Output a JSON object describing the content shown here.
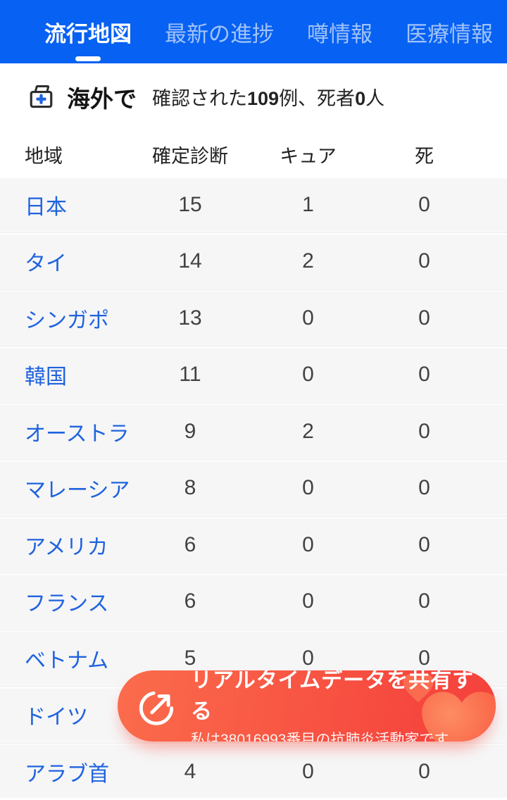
{
  "header": {
    "bg_color": "#0761F2",
    "tabs": [
      {
        "label": "流行地図",
        "active": true
      },
      {
        "label": "最新の進捗",
        "active": false
      },
      {
        "label": "噂情報",
        "active": false
      },
      {
        "label": "医療情報",
        "active": false
      }
    ]
  },
  "summary": {
    "icon": "archive-plus-icon",
    "title": "海外で",
    "desc_prefix": "確認された",
    "confirmed_total": "109",
    "desc_middle": "例、死者",
    "death_total": "0",
    "desc_suffix": "人"
  },
  "table": {
    "columns": [
      "地域",
      "確定診断",
      "キュア",
      "死"
    ],
    "link_color": "#1F63DE",
    "rows": [
      {
        "region": "日本",
        "confirmed": "15",
        "cured": "1",
        "dead": "0"
      },
      {
        "region": "タイ",
        "confirmed": "14",
        "cured": "2",
        "dead": "0"
      },
      {
        "region": "シンガポ",
        "confirmed": "13",
        "cured": "0",
        "dead": "0"
      },
      {
        "region": "韓国",
        "confirmed": "11",
        "cured": "0",
        "dead": "0"
      },
      {
        "region": "オーストラ",
        "confirmed": "9",
        "cured": "2",
        "dead": "0"
      },
      {
        "region": "マレーシア",
        "confirmed": "8",
        "cured": "0",
        "dead": "0"
      },
      {
        "region": "アメリカ",
        "confirmed": "6",
        "cured": "0",
        "dead": "0"
      },
      {
        "region": "フランス",
        "confirmed": "6",
        "cured": "0",
        "dead": "0"
      },
      {
        "region": "ベトナム",
        "confirmed": "5",
        "cured": "0",
        "dead": "0"
      },
      {
        "region": "ドイツ",
        "confirmed": "",
        "cured": "",
        "dead": ""
      },
      {
        "region": "アラブ首",
        "confirmed": "4",
        "cured": "0",
        "dead": "0"
      }
    ]
  },
  "share_banner": {
    "icon": "share-circle-arrow-icon",
    "decor": "heart-icon",
    "title": "リアルタイムデータを共有する",
    "subtitle": "私は38016993番目の抗肺炎活動家です",
    "gradient_start": "#FB6C4C",
    "gradient_end": "#F4423C"
  }
}
